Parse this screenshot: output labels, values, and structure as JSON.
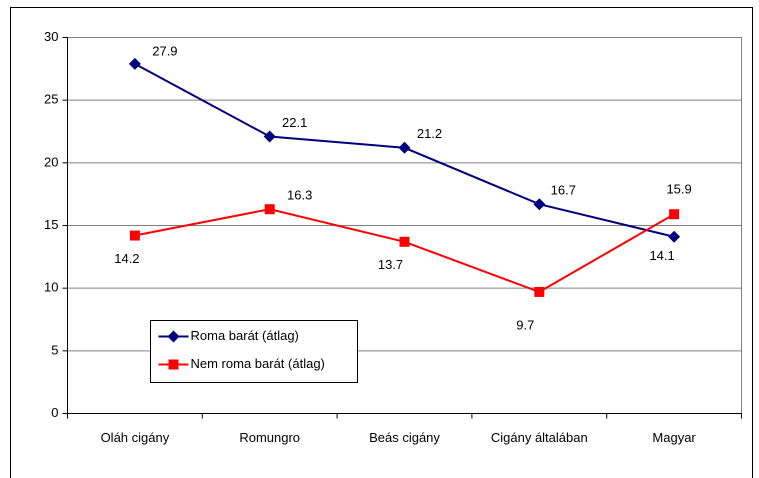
{
  "chart_data": {
    "type": "line",
    "categories": [
      "Oláh cigány",
      "Romungro",
      "Beás cigány",
      "Cigány általában",
      "Magyar"
    ],
    "series": [
      {
        "name": "Roma barát (átlag)",
        "color": "#000080",
        "marker": "diamond",
        "values": [
          27.9,
          22.1,
          21.2,
          16.7,
          14.1
        ]
      },
      {
        "name": "Nem roma barát (átlag)",
        "color": "#ff0000",
        "marker": "square",
        "values": [
          14.2,
          16.3,
          13.7,
          9.7,
          15.9
        ]
      }
    ],
    "ylim": [
      0,
      30
    ],
    "yticks": [
      0,
      5,
      10,
      15,
      20,
      25,
      30
    ],
    "grid": true,
    "legend": "lower left"
  }
}
